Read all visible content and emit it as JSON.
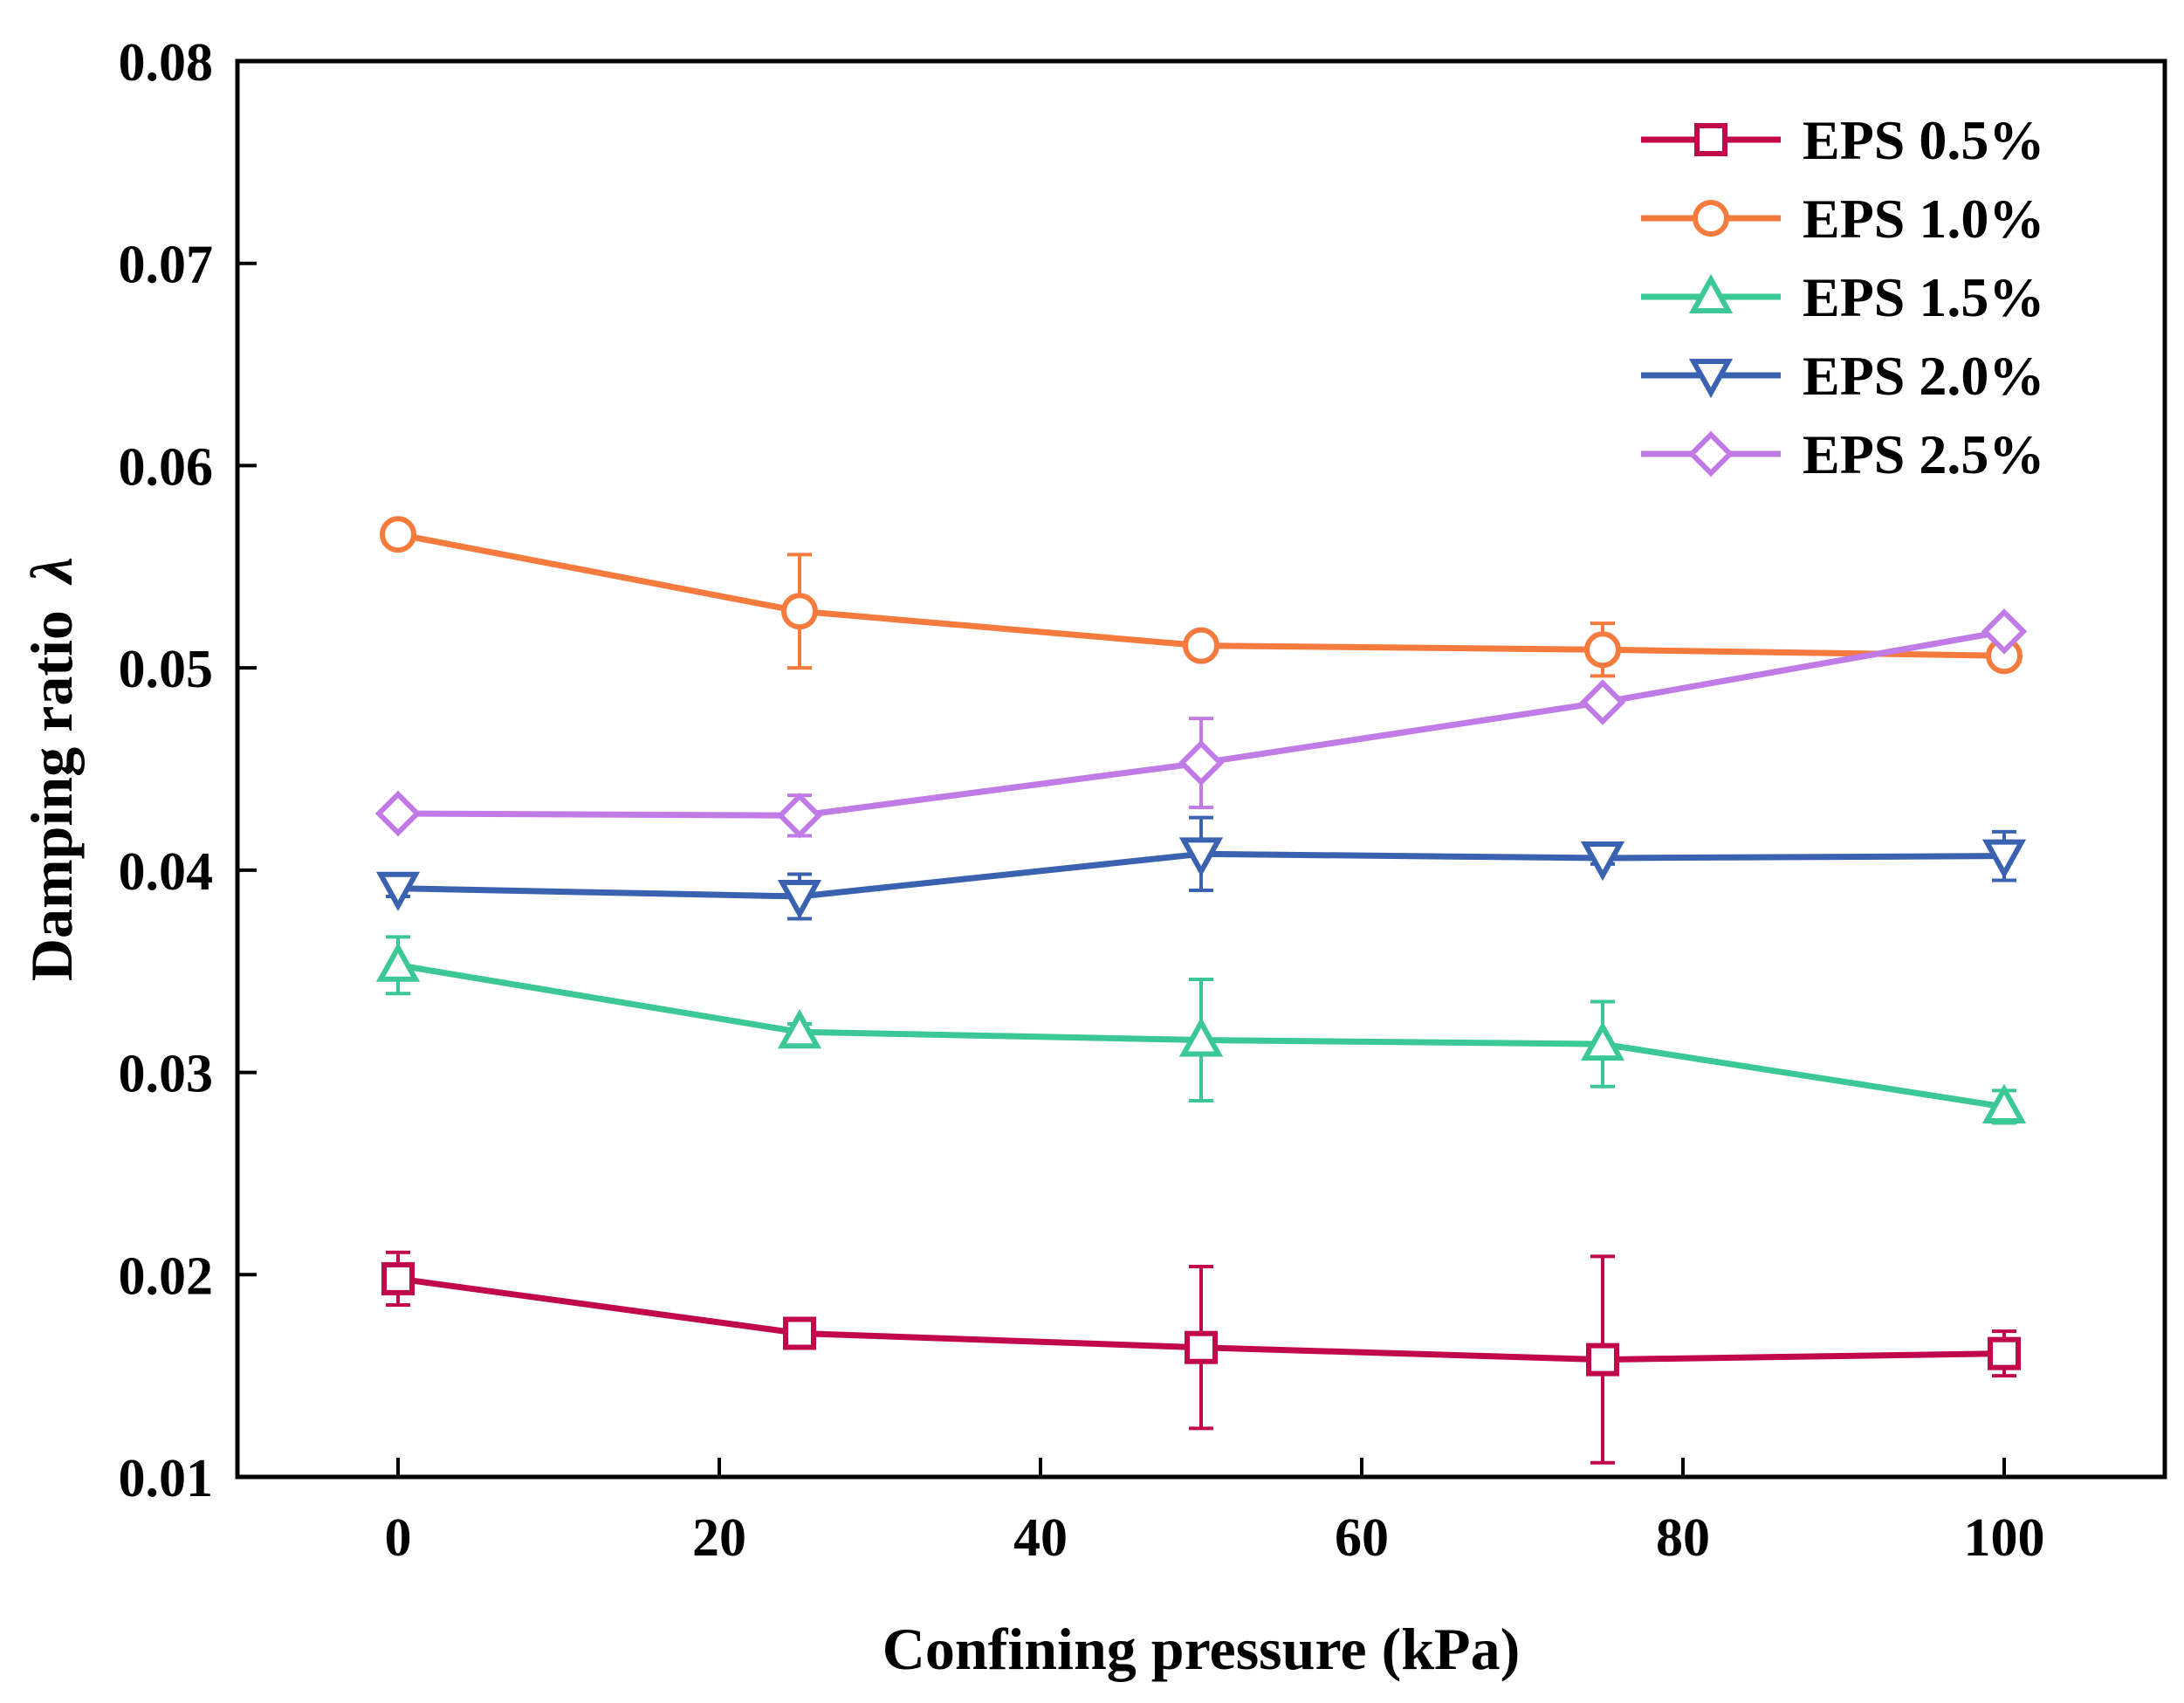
{
  "chart_data": {
    "type": "line",
    "title": "",
    "xlabel": "Confining pressure (kPa)",
    "ylabel": "Damping ratio",
    "ylabel_symbol": "λ",
    "xlim": [
      -10,
      110
    ],
    "ylim": [
      0.01,
      0.08
    ],
    "xticks": [
      0,
      20,
      40,
      60,
      80,
      100
    ],
    "xtick_labels": [
      "0",
      "20",
      "40",
      "60",
      "80",
      "100"
    ],
    "yticks": [
      0.01,
      0.02,
      0.03,
      0.04,
      0.05,
      0.06,
      0.07,
      0.08
    ],
    "ytick_labels": [
      "0.01",
      "0.02",
      "0.03",
      "0.04",
      "0.05",
      "0.06",
      "0.07",
      "0.08"
    ],
    "grid": false,
    "legend_position": "top-right",
    "x": [
      0,
      25,
      50,
      75,
      100
    ],
    "series": [
      {
        "name": "EPS 0.5%",
        "marker": "square",
        "color": "#C0084A",
        "values": [
          0.0198,
          0.0171,
          0.0164,
          0.0158,
          0.0161
        ],
        "errors": [
          0.0013,
          0.0004,
          0.004,
          0.0051,
          0.0011
        ]
      },
      {
        "name": "EPS 1.0%",
        "marker": "circle",
        "color": "#F47A3E",
        "values": [
          0.0566,
          0.0528,
          0.0511,
          0.0509,
          0.0506
        ],
        "errors": [
          0.0003,
          0.0028,
          0.0003,
          0.0013,
          0.0003
        ]
      },
      {
        "name": "EPS 1.5%",
        "marker": "triangle-up",
        "color": "#3CC896",
        "values": [
          0.0353,
          0.032,
          0.0316,
          0.0314,
          0.0283
        ],
        "errors": [
          0.0014,
          0.0004,
          0.003,
          0.0021,
          0.0008
        ]
      },
      {
        "name": "EPS 2.0%",
        "marker": "triangle-down",
        "color": "#3A62B0",
        "values": [
          0.0391,
          0.0387,
          0.0408,
          0.0406,
          0.0407
        ],
        "errors": [
          0.0004,
          0.0011,
          0.0018,
          0.0003,
          0.0012
        ]
      },
      {
        "name": "EPS 2.5%",
        "marker": "diamond",
        "color": "#C07BE6",
        "values": [
          0.0428,
          0.0427,
          0.0453,
          0.0483,
          0.0518
        ],
        "errors": [
          0.0004,
          0.001,
          0.0022,
          0.0004,
          0.0004
        ]
      }
    ]
  }
}
